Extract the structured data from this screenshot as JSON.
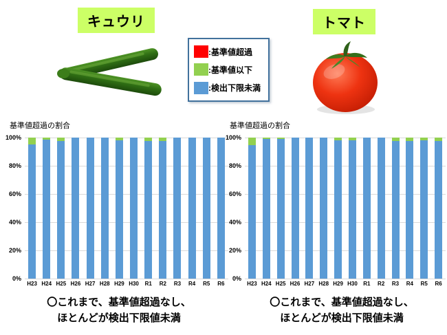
{
  "sections": {
    "cucumber": {
      "title": "キュウリ",
      "caption_line1": "〇これまで、基準値超過なし、",
      "caption_line2": "ほとんどが検出下限値未満"
    },
    "tomato": {
      "title": "トマト",
      "caption_line1": "〇これまで、基準値超過なし、",
      "caption_line2": "ほとんどが検出下限値未満"
    }
  },
  "legend": {
    "border_color": "#41719c",
    "items": [
      {
        "label": ":基準値超過",
        "color": "#ff0000"
      },
      {
        "label": ":基準値以下",
        "color": "#92d050"
      },
      {
        "label": ":検出下限未満",
        "color": "#5b9bd5"
      }
    ]
  },
  "colors": {
    "title_highlight": "#ccff66",
    "bar_blue": "#5b9bd5",
    "bar_green": "#92d050",
    "bar_red": "#ff0000",
    "gridline": "#d9d9d9"
  },
  "chart_data": [
    {
      "type": "bar",
      "stacked": true,
      "axis_title": "基準値超過の割合",
      "subject": "キュウリ",
      "categories": [
        "H23",
        "H24",
        "H25",
        "H26",
        "H27",
        "H28",
        "H29",
        "H30",
        "R1",
        "R2",
        "R3",
        "R4",
        "R5",
        "R6"
      ],
      "series": [
        {
          "name": "検出下限未満",
          "color": "#5b9bd5",
          "values": [
            95,
            98.5,
            97.5,
            100,
            100,
            100,
            98,
            100,
            97.5,
            97.5,
            100,
            100,
            100,
            100
          ]
        },
        {
          "name": "基準値以下",
          "color": "#92d050",
          "values": [
            5,
            1.5,
            2.5,
            0,
            0,
            0,
            2,
            0,
            2.5,
            2.5,
            0,
            0,
            0,
            0
          ]
        },
        {
          "name": "基準値超過",
          "color": "#ff0000",
          "values": [
            0,
            0,
            0,
            0,
            0,
            0,
            0,
            0,
            0,
            0,
            0,
            0,
            0,
            0
          ]
        }
      ],
      "ylim": [
        0,
        100
      ],
      "yticks": [
        "100%",
        "80%",
        "60%",
        "40%",
        "20%",
        "0%"
      ],
      "grid": true,
      "legend_position": "top-center-shared"
    },
    {
      "type": "bar",
      "stacked": true,
      "axis_title": "基準値超過の割合",
      "subject": "トマト",
      "categories": [
        "H23",
        "H24",
        "H25",
        "H26",
        "H27",
        "H28",
        "H29",
        "H30",
        "R1",
        "R2",
        "R3",
        "R4",
        "R5",
        "R6"
      ],
      "series": [
        {
          "name": "検出下限未満",
          "color": "#5b9bd5",
          "values": [
            94.5,
            99,
            99,
            100,
            100,
            100,
            98,
            98,
            100,
            100,
            97.5,
            97.5,
            98,
            97.5
          ]
        },
        {
          "name": "基準値以下",
          "color": "#92d050",
          "values": [
            5.5,
            1,
            1,
            0,
            0,
            0,
            2,
            2,
            0,
            0,
            2.5,
            2.5,
            2,
            2.5
          ]
        },
        {
          "name": "基準値超過",
          "color": "#ff0000",
          "values": [
            0,
            0,
            0,
            0,
            0,
            0,
            0,
            0,
            0,
            0,
            0,
            0,
            0,
            0
          ]
        }
      ],
      "ylim": [
        0,
        100
      ],
      "yticks": [
        "100%",
        "80%",
        "60%",
        "40%",
        "20%",
        "0%"
      ],
      "grid": true,
      "legend_position": "top-center-shared"
    }
  ]
}
